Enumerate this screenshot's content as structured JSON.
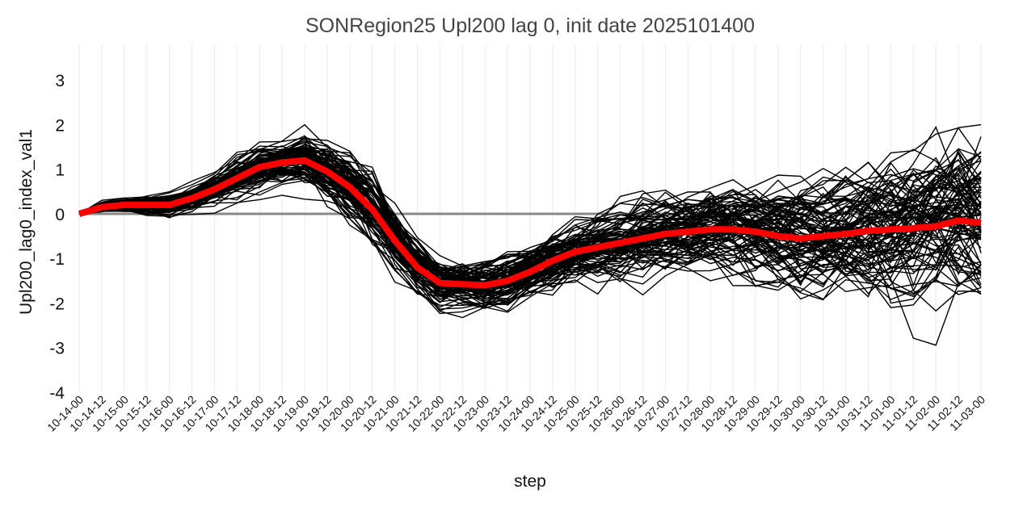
{
  "chart_data": {
    "type": "line",
    "title": "SONRegion25 Upl200 lag 0, init date 2025101400",
    "xlabel": "step",
    "ylabel": "Upl200_lag0_index_val1",
    "categories": [
      "10-14-00",
      "10-14-12",
      "10-15-00",
      "10-15-12",
      "10-16-00",
      "10-16-12",
      "10-17-00",
      "10-17-12",
      "10-18-00",
      "10-18-12",
      "10-19-00",
      "10-19-12",
      "10-20-00",
      "10-20-12",
      "10-21-00",
      "10-21-12",
      "10-22-00",
      "10-22-12",
      "10-23-00",
      "10-23-12",
      "10-24-00",
      "10-24-12",
      "10-25-00",
      "10-25-12",
      "10-26-00",
      "10-26-12",
      "10-27-00",
      "10-27-12",
      "10-28-00",
      "10-28-12",
      "10-29-00",
      "10-29-12",
      "10-30-00",
      "10-30-12",
      "10-31-00",
      "10-31-12",
      "11-01-00",
      "11-01-12",
      "11-02-00",
      "11-02-12",
      "11-03-00"
    ],
    "ylim": [
      -4,
      3.8
    ],
    "yticks": [
      "3",
      "2",
      "1",
      "0",
      "-1",
      "-2",
      "-3",
      "-4"
    ],
    "grid": "vertical",
    "zero_line": 0,
    "series_colors": {
      "members": "#000000",
      "mean": "#ff0000",
      "zero_line": "#888888"
    },
    "mean_values": [
      0,
      0.15,
      0.2,
      0.2,
      0.2,
      0.35,
      0.55,
      0.8,
      1.05,
      1.15,
      1.2,
      0.95,
      0.6,
      0.1,
      -0.6,
      -1.2,
      -1.55,
      -1.58,
      -1.6,
      -1.5,
      -1.3,
      -1.05,
      -0.85,
      -0.75,
      -0.65,
      -0.55,
      -0.45,
      -0.4,
      -0.35,
      -0.35,
      -0.4,
      -0.5,
      -0.55,
      -0.5,
      -0.45,
      -0.38,
      -0.35,
      -0.32,
      -0.28,
      -0.15,
      -0.2
    ],
    "member_spread": [
      0,
      0.1,
      0.12,
      0.15,
      0.2,
      0.22,
      0.25,
      0.3,
      0.35,
      0.35,
      0.38,
      0.45,
      0.55,
      0.6,
      0.55,
      0.45,
      0.4,
      0.4,
      0.42,
      0.45,
      0.45,
      0.48,
      0.5,
      0.52,
      0.55,
      0.58,
      0.62,
      0.66,
      0.7,
      0.75,
      0.8,
      0.86,
      0.92,
      0.98,
      1.05,
      1.1,
      1.15,
      1.2,
      1.25,
      1.3,
      1.35
    ],
    "member_count": 100
  }
}
